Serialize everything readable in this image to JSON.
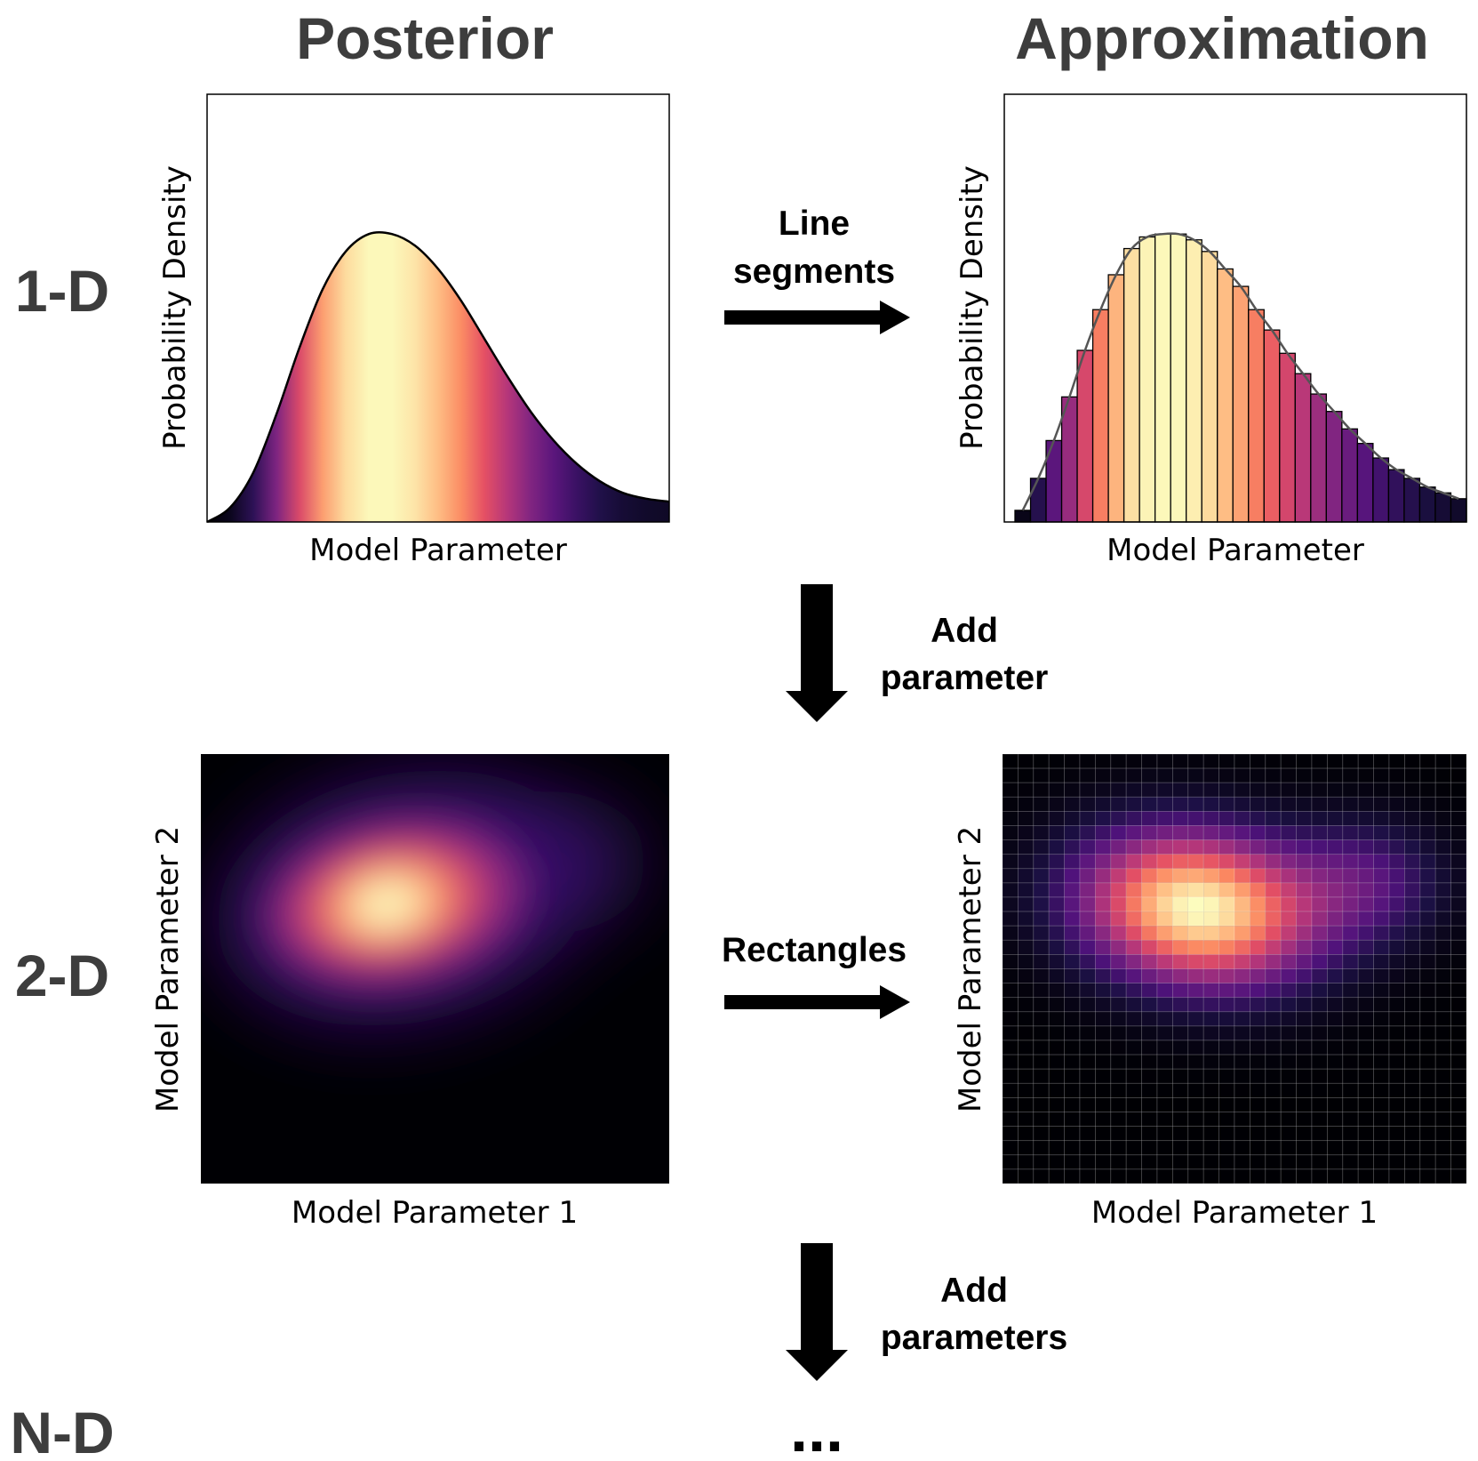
{
  "columns": {
    "posterior": "Posterior",
    "approximation": "Approximation"
  },
  "rows": {
    "one_d": "1-D",
    "two_d": "2-D",
    "n_d": "N-D"
  },
  "steps": {
    "line_segments": [
      "Line",
      "segments"
    ],
    "add_parameter": [
      "Add",
      "parameter"
    ],
    "rectangles": "Rectangles",
    "add_parameters": [
      "Add",
      "parameters"
    ],
    "ellipsis": "..."
  },
  "axes": {
    "probability_density": "Probability Density",
    "model_parameter": "Model Parameter",
    "model_parameter_1": "Model Parameter 1",
    "model_parameter_2": "Model Parameter 2"
  },
  "colors": {
    "colormap": "magma",
    "text_dark": "#3d3d3d",
    "arrow": "#000000"
  },
  "chart_data": [
    {
      "type": "area",
      "panel": "1-D posterior",
      "xlabel": "Model Parameter",
      "ylabel": "Probability Density",
      "x": [
        0,
        0.05,
        0.1,
        0.15,
        0.2,
        0.25,
        0.3,
        0.35,
        0.4,
        0.45,
        0.5,
        0.55,
        0.6,
        0.65,
        0.7,
        0.75,
        0.8,
        0.85,
        0.9,
        0.95,
        1
      ],
      "y": [
        0.0,
        0.05,
        0.17,
        0.37,
        0.6,
        0.8,
        0.93,
        0.99,
        0.99,
        0.95,
        0.87,
        0.76,
        0.63,
        0.5,
        0.38,
        0.28,
        0.2,
        0.14,
        0.1,
        0.08,
        0.07
      ]
    },
    {
      "type": "bar",
      "panel": "1-D approximation",
      "xlabel": "Model Parameter",
      "ylabel": "Probability Density",
      "values": [
        0.04,
        0.15,
        0.28,
        0.43,
        0.59,
        0.73,
        0.85,
        0.94,
        0.98,
        0.99,
        0.99,
        0.97,
        0.93,
        0.87,
        0.81,
        0.73,
        0.66,
        0.58,
        0.51,
        0.44,
        0.38,
        0.32,
        0.27,
        0.22,
        0.18,
        0.15,
        0.12,
        0.1,
        0.08
      ],
      "curve": true
    },
    {
      "type": "heatmap",
      "panel": "2-D posterior",
      "xlabel": "Model Parameter 1",
      "ylabel": "Model Parameter 2",
      "peak": [
        0.4,
        0.65
      ],
      "smooth": true
    },
    {
      "type": "heatmap",
      "panel": "2-D approximation",
      "xlabel": "Model Parameter 1",
      "ylabel": "Model Parameter 2",
      "grid": [
        30,
        30
      ],
      "peak": [
        0.4,
        0.65
      ],
      "smooth": false
    }
  ]
}
